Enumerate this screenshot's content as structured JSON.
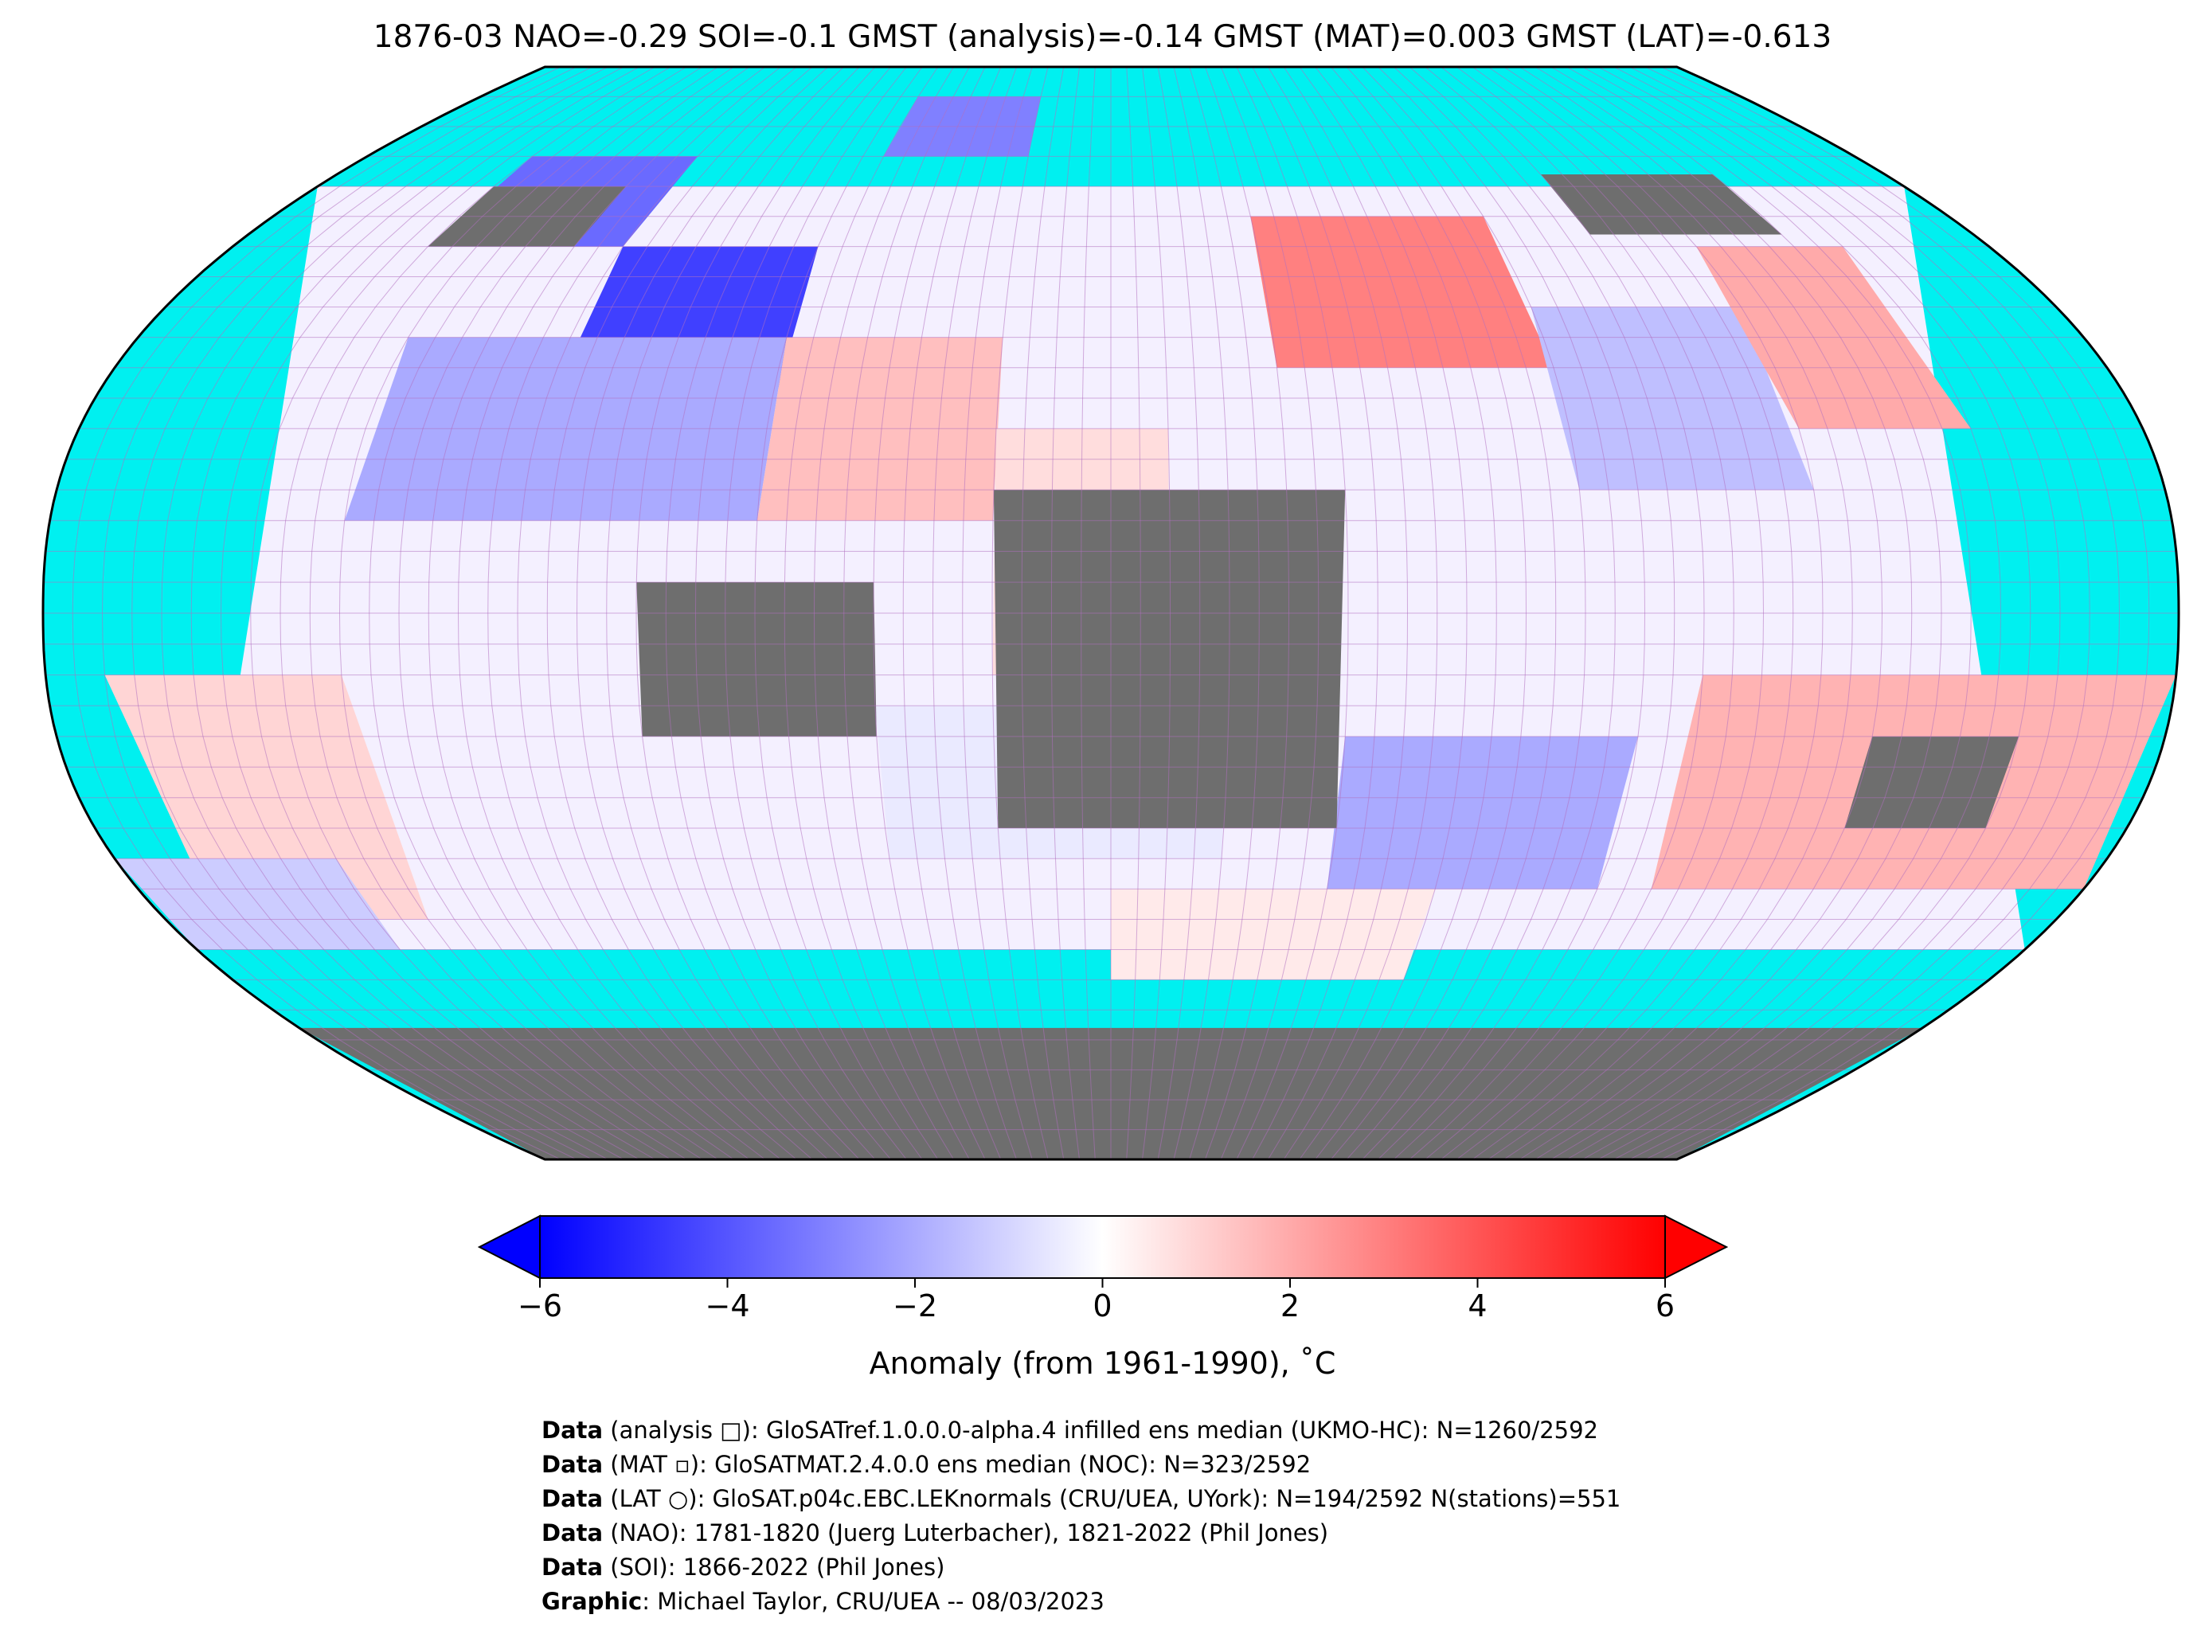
{
  "header": {
    "title": "1876-03 NAO=-0.29 SOI=-0.1 GMST (analysis)=-0.14 GMST (MAT)=0.003 GMST (LAT)=-0.613"
  },
  "colors": {
    "ocean_nodata": "#00f0f0",
    "land_nodata": "#6e6e6e",
    "grid": "#b070c0",
    "cold": "#0000ff",
    "neutral": "#ffffff",
    "warm": "#ff0000"
  },
  "map": {
    "projection": "robinson",
    "regions": [
      {
        "lon": [
          -140,
          -100
        ],
        "lat": [
          60,
          75
        ],
        "anomaly": -3.5
      },
      {
        "lon": [
          -100,
          -60
        ],
        "lat": [
          30,
          60
        ],
        "anomaly": -4.5
      },
      {
        "lon": [
          -130,
          -60
        ],
        "lat": [
          15,
          45
        ],
        "anomaly": -2.0
      },
      {
        "lon": [
          -60,
          -20
        ],
        "lat": [
          15,
          45
        ],
        "anomaly": 1.5
      },
      {
        "lon": [
          -20,
          10
        ],
        "lat": [
          -10,
          30
        ],
        "anomaly": 0.8
      },
      {
        "lon": [
          30,
          80
        ],
        "lat": [
          40,
          65
        ],
        "anomaly": 3.0
      },
      {
        "lon": [
          80,
          120
        ],
        "lat": [
          20,
          50
        ],
        "anomaly": -1.5
      },
      {
        "lon": [
          120,
          150
        ],
        "lat": [
          30,
          60
        ],
        "anomaly": 2.0
      },
      {
        "lon": [
          40,
          90
        ],
        "lat": [
          -45,
          -20
        ],
        "anomaly": -2.0
      },
      {
        "lon": [
          100,
          180
        ],
        "lat": [
          -45,
          -10
        ],
        "anomaly": 1.8
      },
      {
        "lon": [
          -170,
          -130
        ],
        "lat": [
          -50,
          -10
        ],
        "anomaly": 1.0
      },
      {
        "lon": [
          -40,
          20
        ],
        "lat": [
          -40,
          -15
        ],
        "anomaly": -0.5
      },
      {
        "lon": [
          0,
          60
        ],
        "lat": [
          -60,
          -45
        ],
        "anomaly": 0.5
      },
      {
        "lon": [
          -180,
          -140
        ],
        "lat": [
          -55,
          -40
        ],
        "anomaly": -1.2
      }
    ],
    "land_nodata": [
      {
        "lon": [
          -20,
          40
        ],
        "lat": [
          -35,
          20
        ]
      },
      {
        "lon": [
          -80,
          -40
        ],
        "lat": [
          -20,
          5
        ]
      },
      {
        "lon": [
          100,
          140
        ],
        "lat": [
          62,
          72
        ]
      },
      {
        "lon": [
          -140,
          -110
        ],
        "lat": [
          60,
          70
        ]
      },
      {
        "lon": [
          130,
          155
        ],
        "lat": [
          -35,
          -20
        ]
      }
    ]
  },
  "colorbar": {
    "ticks": [
      "−6",
      "−4",
      "−2",
      "0",
      "2",
      "4",
      "6"
    ],
    "label": "Anomaly (from 1961-1990), ˚C",
    "range": [
      -6,
      6
    ]
  },
  "credits": [
    {
      "bold": "Data",
      "text": " (analysis □): GloSATref.1.0.0.0-alpha.4 infilled ens median (UKMO-HC): N=1260/2592"
    },
    {
      "bold": "Data",
      "text": " (MAT ▫): GloSATMAT.2.4.0.0 ens median (NOC): N=323/2592"
    },
    {
      "bold": "Data",
      "text": " (LAT ○): GloSAT.p04c.EBC.LEKnormals (CRU/UEA, UYork): N=194/2592 N(stations)=551"
    },
    {
      "bold": "Data",
      "text": " (NAO): 1781-1820 (Juerg Luterbacher), 1821-2022 (Phil Jones)"
    },
    {
      "bold": "Data",
      "text": " (SOI): 1866-2022 (Phil Jones)"
    },
    {
      "bold": "Graphic",
      "text": ": Michael Taylor, CRU/UEA -- 08/03/2023"
    }
  ]
}
